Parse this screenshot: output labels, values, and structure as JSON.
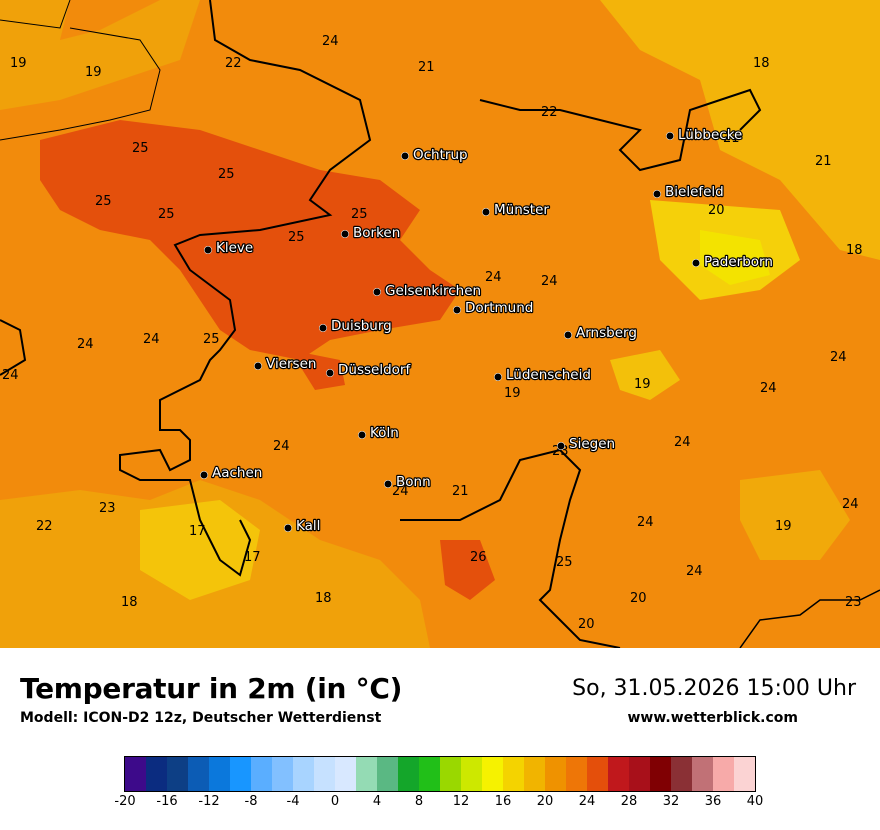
{
  "map": {
    "cities": [
      {
        "name": "Ochtrup"
      },
      {
        "name": "Lübbecke"
      },
      {
        "name": "Bielefeld"
      },
      {
        "name": "Münster"
      },
      {
        "name": "Borken"
      },
      {
        "name": "Kleve"
      },
      {
        "name": "Paderborn"
      },
      {
        "name": "Gelsenkirchen"
      },
      {
        "name": "Dortmund"
      },
      {
        "name": "Duisburg"
      },
      {
        "name": "Arnsberg"
      },
      {
        "name": "Viersen"
      },
      {
        "name": "Düsseldorf"
      },
      {
        "name": "Lüdenscheid"
      },
      {
        "name": "Köln"
      },
      {
        "name": "Siegen"
      },
      {
        "name": "Aachen"
      },
      {
        "name": "Bonn"
      },
      {
        "name": "Kall"
      }
    ],
    "values": [
      "19",
      "19",
      "22",
      "24",
      "21",
      "18",
      "22",
      "21",
      "21",
      "25",
      "25",
      "25",
      "25",
      "20",
      "25",
      "25",
      "18",
      "24",
      "24",
      "24",
      "24",
      "25",
      "24",
      "24",
      "19",
      "24",
      "24",
      "19",
      "24",
      "24",
      "24",
      "23",
      "21",
      "22",
      "23",
      "17",
      "24",
      "19",
      "17",
      "26",
      "25",
      "24",
      "18",
      "18",
      "20",
      "23",
      "20"
    ]
  },
  "footer": {
    "title": "Temperatur in 2m (in °C)",
    "subtitle": "Modell: ICON-D2 12z, Deutscher Wetterdienst",
    "datetime": "So, 31.05.2026 15:00 Uhr",
    "website": "www.wetterblick.com"
  },
  "legend": {
    "tick_labels": [
      "-20",
      "-16",
      "-12",
      "-8",
      "-4",
      "0",
      "4",
      "8",
      "12",
      "16",
      "20",
      "24",
      "28",
      "32",
      "36",
      "40"
    ],
    "colors": [
      "#3d0a8a",
      "#0b2c80",
      "#0d3f85",
      "#0c5cb5",
      "#0b78dc",
      "#1896ff",
      "#5aaeff",
      "#82c0ff",
      "#a8d4ff",
      "#c6e1ff",
      "#d8e8ff",
      "#94dbb4",
      "#5ab883",
      "#14a62a",
      "#21bf18",
      "#9ad800",
      "#cde800",
      "#f6f200",
      "#f4d300",
      "#f1b400",
      "#ef9200",
      "#ee7607",
      "#e44f0b",
      "#c0181c",
      "#a8101a",
      "#800003",
      "#8a3035",
      "#c17176",
      "#f7aaa9",
      "#fbd3d3"
    ]
  }
}
